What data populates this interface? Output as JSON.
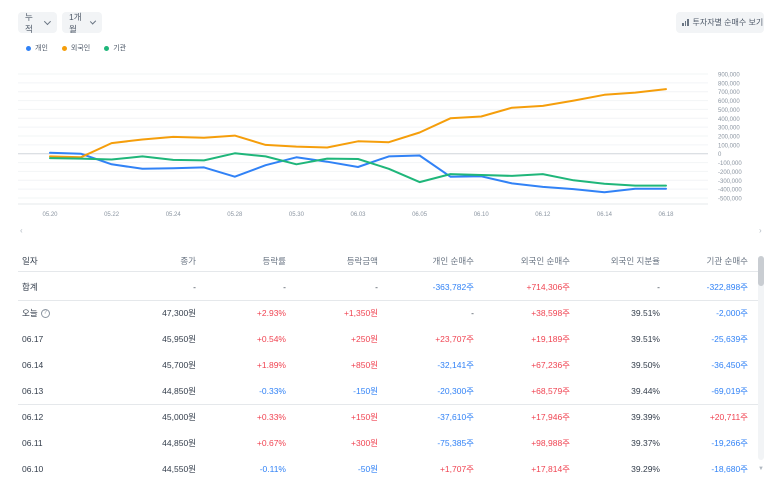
{
  "controls": {
    "period": "누적",
    "range": "1개월",
    "view_button": "투자자별 순매수 보기"
  },
  "legend": [
    {
      "name": "개인",
      "color": "#3182f6"
    },
    {
      "name": "외국인",
      "color": "#f59e0b"
    },
    {
      "name": "기관",
      "color": "#1fb67a"
    }
  ],
  "chart_data": {
    "type": "line",
    "x": [
      "05.20",
      "05.21",
      "05.22",
      "05.23",
      "05.24",
      "05.27",
      "05.28",
      "05.29",
      "05.30",
      "05.31",
      "06.03",
      "06.04",
      "06.05",
      "06.07",
      "06.10",
      "06.11",
      "06.12",
      "06.13",
      "06.14",
      "06.17",
      "06.18"
    ],
    "x_tick_labels": [
      "05.20",
      "05.22",
      "05.24",
      "05.28",
      "05.30",
      "06.03",
      "06.05",
      "06.10",
      "06.12",
      "06.14",
      "06.18"
    ],
    "y_ticks": [
      900000,
      800000,
      700000,
      600000,
      500000,
      400000,
      300000,
      200000,
      100000,
      0,
      -100000,
      -200000,
      -300000,
      -400000,
      -500000
    ],
    "y_tick_labels": [
      "900,000",
      "800,000",
      "700,000",
      "600,000",
      "500,000",
      "400,000",
      "300,000",
      "200,000",
      "100,000",
      "0",
      "-100,000",
      "-200,000",
      "-300,000",
      "-400,000",
      "-500,000"
    ],
    "ylim": [
      -500000,
      900000
    ],
    "series": [
      {
        "name": "개인",
        "color": "#3182f6",
        "values": [
          10000,
          0,
          -120000,
          -170000,
          -165000,
          -155000,
          -260000,
          -130000,
          -40000,
          -90000,
          -150000,
          -30000,
          -20000,
          -260000,
          -255000,
          -335000,
          -375000,
          -400000,
          -435000,
          -395000,
          -395000
        ]
      },
      {
        "name": "외국인",
        "color": "#f59e0b",
        "values": [
          -30000,
          -40000,
          120000,
          160000,
          190000,
          180000,
          205000,
          100000,
          80000,
          70000,
          140000,
          130000,
          240000,
          400000,
          420000,
          520000,
          540000,
          600000,
          665000,
          690000,
          730000
        ]
      },
      {
        "name": "기관",
        "color": "#1fb67a",
        "values": [
          -50000,
          -55000,
          -65000,
          -30000,
          -70000,
          -75000,
          5000,
          -30000,
          -120000,
          -55000,
          -60000,
          -170000,
          -320000,
          -230000,
          -240000,
          -250000,
          -230000,
          -300000,
          -340000,
          -360000,
          -360000
        ]
      }
    ]
  },
  "scroll_hints": {
    "left": "‹",
    "right": "›"
  },
  "table": {
    "headers": [
      "일자",
      "종가",
      "등락률",
      "등락금액",
      "개인 순매수",
      "외국인 순매수",
      "외국인 지분율",
      "기관 순매수"
    ],
    "rows": [
      {
        "date": "합계",
        "help": "",
        "close": "-",
        "rate": "-",
        "amount": "-",
        "indiv": "-363,782주",
        "foreign": "+714,306주",
        "share": "-",
        "inst": "-322,898주"
      },
      {
        "date": "오늘",
        "help": "?",
        "close": "47,300원",
        "rate": "+2.93%",
        "amount": "+1,350원",
        "indiv": "-",
        "foreign": "+38,598주",
        "share": "39.51%",
        "inst": "-2,000주"
      },
      {
        "date": "06.17",
        "help": "",
        "close": "45,950원",
        "rate": "+0.54%",
        "amount": "+250원",
        "indiv": "+23,707주",
        "foreign": "+19,189주",
        "share": "39.51%",
        "inst": "-25,639주"
      },
      {
        "date": "06.14",
        "help": "",
        "close": "45,700원",
        "rate": "+1.89%",
        "amount": "+850원",
        "indiv": "-32,141주",
        "foreign": "+67,236주",
        "share": "39.50%",
        "inst": "-36,450주"
      },
      {
        "date": "06.13",
        "help": "",
        "close": "44,850원",
        "rate": "-0.33%",
        "amount": "-150원",
        "indiv": "-20,300주",
        "foreign": "+68,579주",
        "share": "39.44%",
        "inst": "-69,019주"
      },
      {
        "date": "06.12",
        "help": "",
        "close": "45,000원",
        "rate": "+0.33%",
        "amount": "+150원",
        "indiv": "-37,610주",
        "foreign": "+17,946주",
        "share": "39.39%",
        "inst": "+20,711주"
      },
      {
        "date": "06.11",
        "help": "",
        "close": "44,850원",
        "rate": "+0.67%",
        "amount": "+300원",
        "indiv": "-75,385주",
        "foreign": "+98,988주",
        "share": "39.37%",
        "inst": "-19,266주"
      },
      {
        "date": "06.10",
        "help": "",
        "close": "44,550원",
        "rate": "-0.11%",
        "amount": "-50원",
        "indiv": "+1,707주",
        "foreign": "+17,814주",
        "share": "39.29%",
        "inst": "-18,680주"
      }
    ]
  }
}
